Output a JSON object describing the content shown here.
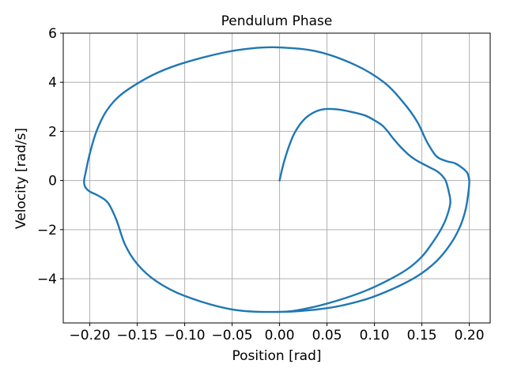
{
  "chart_data": {
    "type": "line",
    "title": "Pendulum Phase",
    "xlabel": "Position [rad]",
    "ylabel": "Velocity [rad/s]",
    "xlim": [
      -0.228,
      0.222
    ],
    "ylim": [
      -5.8,
      6.0
    ],
    "xticks": [
      -0.2,
      -0.15,
      -0.1,
      -0.05,
      0.0,
      0.05,
      0.1,
      0.15,
      0.2
    ],
    "xtick_labels": [
      "−0.20",
      "−0.15",
      "−0.10",
      "−0.05",
      "0.00",
      "0.05",
      "0.10",
      "0.15",
      "0.20"
    ],
    "yticks": [
      -4,
      -2,
      0,
      2,
      4,
      6
    ],
    "ytick_labels": [
      "−4",
      "−2",
      "0",
      "2",
      "4",
      "6"
    ],
    "grid": true,
    "series": [
      {
        "color": "#1f77b4",
        "x": [
          0.0,
          0.002,
          0.005,
          0.01,
          0.016,
          0.025,
          0.035,
          0.046,
          0.06,
          0.075,
          0.09,
          0.1,
          0.108,
          0.114,
          0.12,
          0.128,
          0.136,
          0.143,
          0.15,
          0.155,
          0.16,
          0.165,
          0.17,
          0.175,
          0.178,
          0.18,
          0.176,
          0.17,
          0.16,
          0.15,
          0.135,
          0.115,
          0.09,
          0.06,
          0.03,
          0.0,
          -0.05,
          -0.1,
          -0.13,
          -0.15,
          -0.163,
          -0.172,
          -0.181,
          -0.192,
          -0.2,
          -0.205,
          -0.206,
          -0.204,
          -0.2,
          -0.193,
          -0.183,
          -0.17,
          -0.152,
          -0.128,
          -0.1,
          -0.06,
          -0.03,
          0.0,
          0.04,
          0.08,
          0.11,
          0.13,
          0.145,
          0.155,
          0.165,
          0.175,
          0.185,
          0.193,
          0.198,
          0.2,
          0.199,
          0.196,
          0.19,
          0.18,
          0.165,
          0.145,
          0.12,
          0.09,
          0.05,
          0.0,
          -0.05,
          -0.1,
          -0.13,
          -0.15,
          -0.163,
          -0.172,
          -0.181,
          -0.192,
          -0.2,
          -0.205,
          -0.206,
          -0.204,
          -0.2,
          -0.193,
          -0.183,
          -0.17,
          -0.152,
          -0.128,
          -0.1,
          -0.06,
          -0.03,
          0.0,
          0.04,
          0.08,
          0.11,
          0.13,
          0.145,
          0.155,
          0.165,
          0.175,
          0.185,
          0.193,
          0.198,
          0.2
        ],
        "y": [
          0.0,
          0.35,
          0.8,
          1.4,
          1.95,
          2.45,
          2.75,
          2.9,
          2.9,
          2.8,
          2.65,
          2.45,
          2.25,
          2.0,
          1.7,
          1.35,
          1.05,
          0.85,
          0.7,
          0.6,
          0.5,
          0.4,
          0.25,
          0.0,
          -0.4,
          -0.9,
          -1.5,
          -2.0,
          -2.6,
          -3.1,
          -3.6,
          -4.05,
          -4.5,
          -4.9,
          -5.2,
          -5.35,
          -5.25,
          -4.7,
          -4.1,
          -3.4,
          -2.6,
          -1.6,
          -0.9,
          -0.6,
          -0.45,
          -0.25,
          0.0,
          0.4,
          1.1,
          2.0,
          2.8,
          3.4,
          3.9,
          4.4,
          4.8,
          5.2,
          5.38,
          5.42,
          5.25,
          4.7,
          4.0,
          3.2,
          2.4,
          1.6,
          1.0,
          0.8,
          0.7,
          0.5,
          0.3,
          0.0,
          -0.5,
          -1.2,
          -1.9,
          -2.6,
          -3.3,
          -3.9,
          -4.4,
          -4.85,
          -5.2,
          -5.35,
          -5.25,
          -4.7,
          -4.1,
          -3.4,
          -2.6,
          -1.6,
          -0.9,
          -0.6,
          -0.45,
          -0.25,
          0.0,
          0.4,
          1.1,
          2.0,
          2.8,
          3.4,
          3.9,
          4.4,
          4.8,
          5.2,
          5.38,
          5.42,
          5.25,
          4.7,
          4.0,
          3.2,
          2.4,
          1.6,
          1.0,
          0.8,
          0.7,
          0.5,
          0.3,
          0.0
        ]
      }
    ]
  }
}
